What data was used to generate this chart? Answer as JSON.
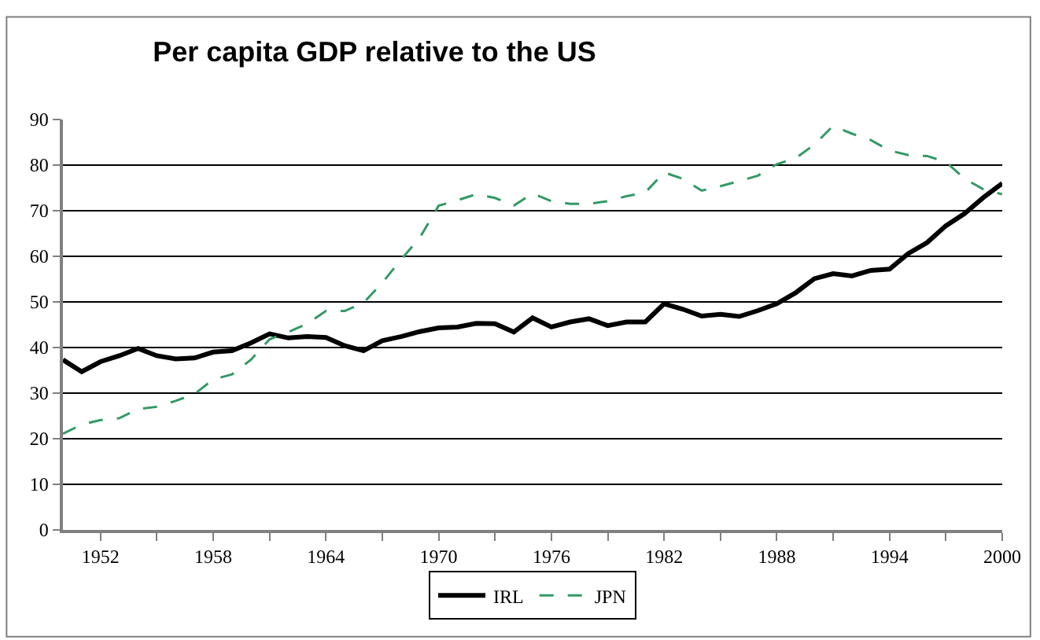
{
  "chart_data": {
    "type": "line",
    "title": "Per capita GDP relative to the US",
    "x": [
      1950,
      1951,
      1952,
      1953,
      1954,
      1955,
      1956,
      1957,
      1958,
      1959,
      1960,
      1961,
      1962,
      1963,
      1964,
      1965,
      1966,
      1967,
      1968,
      1969,
      1970,
      1971,
      1972,
      1973,
      1974,
      1975,
      1976,
      1977,
      1978,
      1979,
      1980,
      1981,
      1982,
      1983,
      1984,
      1985,
      1986,
      1987,
      1988,
      1989,
      1990,
      1991,
      1992,
      1993,
      1994,
      1995,
      1996,
      1997,
      1998,
      1999,
      2000
    ],
    "series": [
      {
        "name": "IRL",
        "color": "#000000",
        "line_style": "solid",
        "values": [
          37.3,
          34.7,
          36.9,
          38.2,
          39.8,
          38.2,
          37.5,
          37.7,
          39,
          39.3,
          41,
          43,
          42.1,
          42.4,
          42.2,
          40.4,
          39.3,
          41.5,
          42.4,
          43.5,
          44.3,
          44.5,
          45.3,
          45.2,
          43.4,
          46.5,
          44.5,
          45.6,
          46.3,
          44.8,
          45.6,
          45.6,
          49.6,
          48.4,
          46.9,
          47.3,
          46.8,
          48.1,
          49.6,
          52,
          55.1,
          56.2,
          55.7,
          56.9,
          57.2,
          60.6,
          63,
          66.7,
          69.4,
          72.9,
          76
        ]
      },
      {
        "name": "JPN",
        "color": "#339966",
        "line_style": "dashed",
        "values": [
          21.1,
          23.1,
          24.1,
          24.5,
          26.5,
          27,
          28.3,
          29.8,
          33,
          34.1,
          37.3,
          41.8,
          43.4,
          45.2,
          48,
          48,
          49.8,
          54.2,
          59.3,
          64.1,
          71.1,
          72.3,
          73.6,
          72.8,
          71.1,
          73.8,
          72.1,
          71.5,
          71.5,
          72.1,
          73.2,
          74,
          78.4,
          77,
          74.4,
          75.4,
          76.5,
          77.7,
          80.2,
          81.5,
          84.5,
          88.6,
          86.9,
          85.5,
          83.2,
          82.2,
          82,
          80.7,
          77,
          74.7,
          73.6
        ]
      }
    ],
    "xlim": [
      1950,
      2000
    ],
    "xticks": [
      1952,
      {
        "value": 1955,
        "label": null
      },
      1958,
      {
        "value": 1961,
        "label": null
      },
      1964,
      {
        "value": 1967,
        "label": null
      },
      1970,
      {
        "value": 1973,
        "label": null
      },
      1976,
      {
        "value": 1979,
        "label": null
      },
      1982,
      {
        "value": 1985,
        "label": null
      },
      1988,
      {
        "value": 1991,
        "label": null
      },
      1994,
      {
        "value": 1997,
        "label": null
      },
      2000
    ],
    "ylim": [
      0,
      90
    ],
    "yticks": [
      0,
      10,
      20,
      30,
      40,
      50,
      60,
      70,
      80,
      90
    ],
    "grid": "y",
    "legend": "bottom",
    "marker": "none"
  }
}
